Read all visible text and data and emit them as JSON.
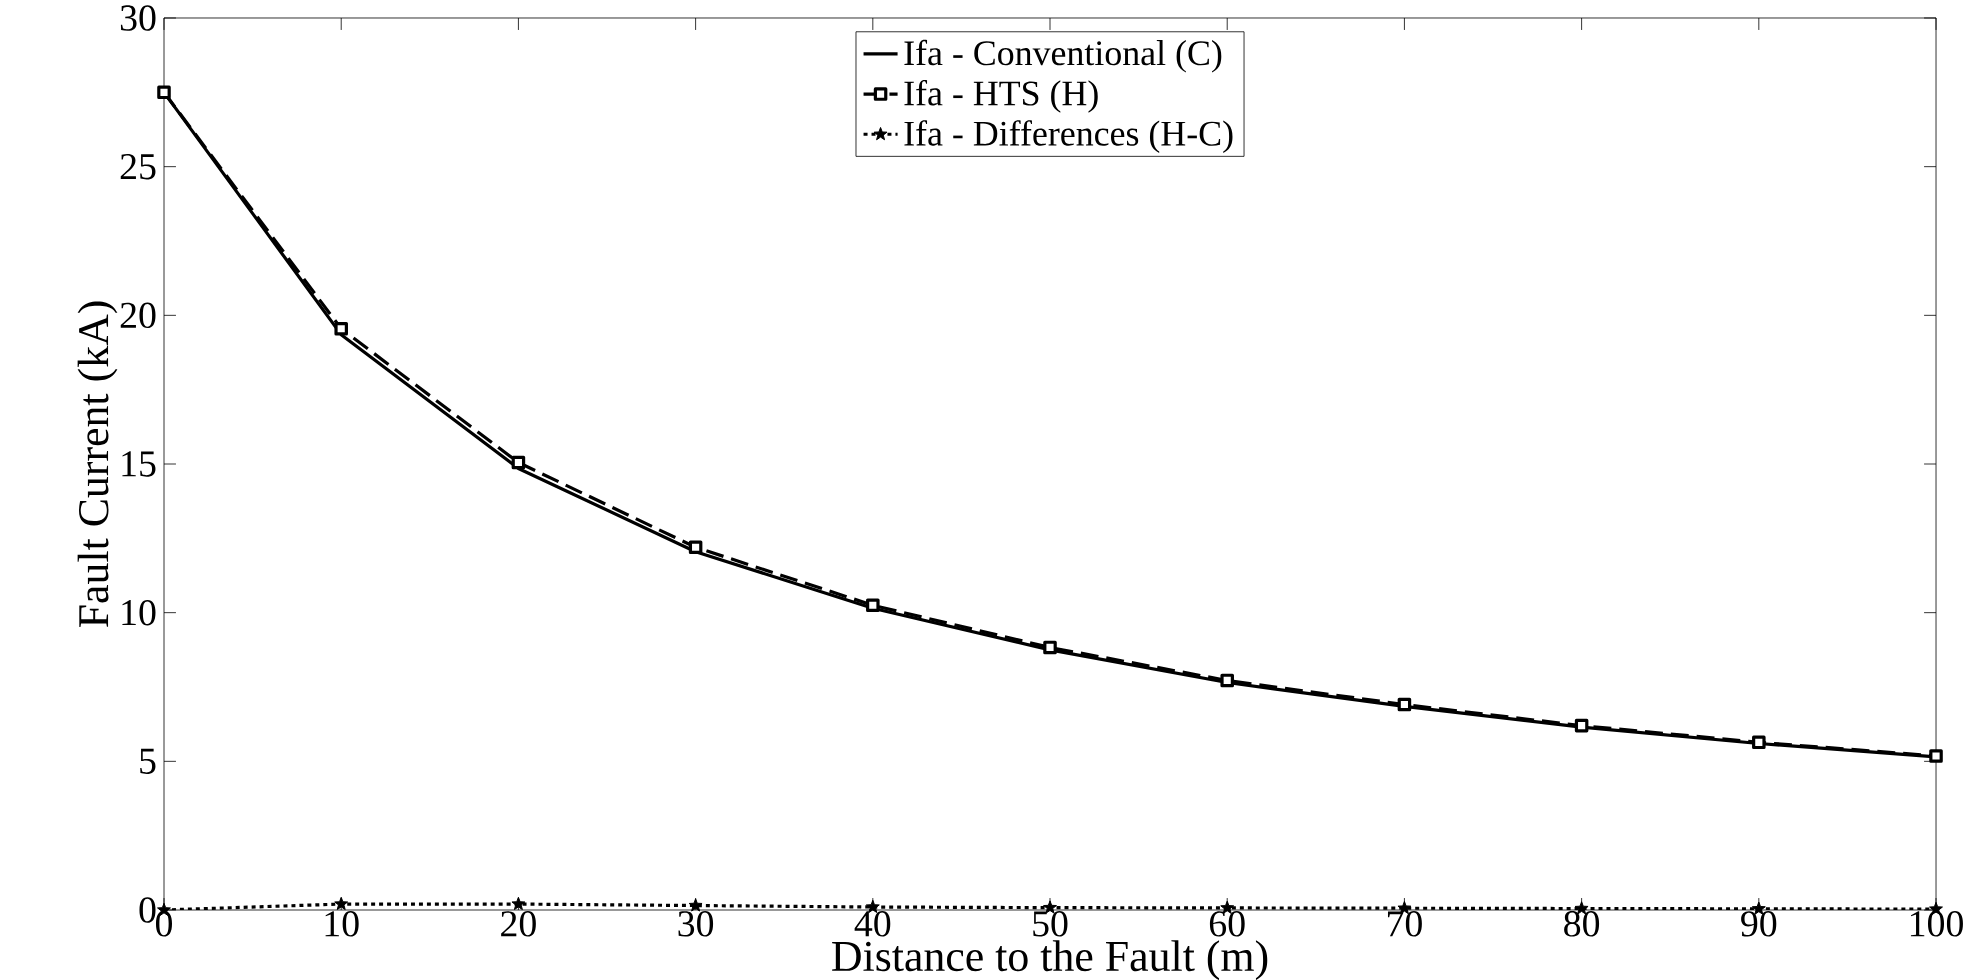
{
  "chart_data": {
    "type": "line",
    "xlabel": "Distance to the Fault (m)",
    "ylabel": "Fault Current (kA)",
    "x": [
      0,
      10,
      20,
      30,
      40,
      50,
      60,
      70,
      80,
      90,
      100
    ],
    "xlim": [
      0,
      100
    ],
    "xticks": [
      0,
      10,
      20,
      30,
      40,
      50,
      60,
      70,
      80,
      90,
      100
    ],
    "ylim": [
      0,
      30
    ],
    "yticks": [
      0,
      5,
      10,
      15,
      20,
      25,
      30
    ],
    "legend": "top",
    "grid": false,
    "series": [
      {
        "name": "Ifa - Conventional (C)",
        "color": "#000000",
        "marker": "none",
        "line_style": "solid",
        "values": [
          27.5,
          19.35,
          14.85,
          12.05,
          10.15,
          8.75,
          7.65,
          6.85,
          6.15,
          5.6,
          5.15
        ]
      },
      {
        "name": "Ifa - HTS (H)",
        "color": "#000000",
        "marker": "square",
        "line_style": "dashed",
        "values": [
          27.5,
          19.55,
          15.05,
          12.2,
          10.25,
          8.83,
          7.72,
          6.91,
          6.2,
          5.64,
          5.18
        ]
      },
      {
        "name": "Ifa - Differences (H-C)",
        "color": "#000000",
        "marker": "star",
        "line_style": "dotted",
        "values": [
          0,
          0.2,
          0.2,
          0.15,
          0.1,
          0.08,
          0.07,
          0.06,
          0.05,
          0.04,
          0.03
        ]
      }
    ]
  }
}
